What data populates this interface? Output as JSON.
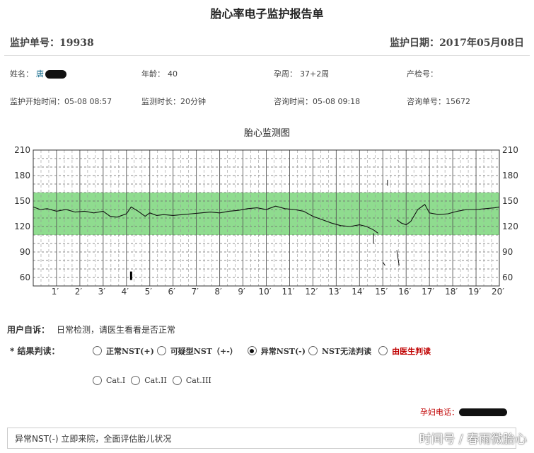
{
  "title": "胎心率电子监护报告单",
  "header": {
    "monitor_no_label": "监护单号：",
    "monitor_no": "19938",
    "monitor_date_label": "监护日期：",
    "monitor_date": "2017年05月08日"
  },
  "patient": {
    "name_label": "姓名：",
    "name": "唐",
    "age_label": "年龄：",
    "age": "40",
    "gestation_label": "孕周：",
    "gestation": "37+2周",
    "prenatal_no_label": "产检号：",
    "prenatal_no": "",
    "start_time_label": "监护开始时间：",
    "start_time": "05-08 08:57",
    "duration_label": "监测时长：",
    "duration": "20分钟",
    "consult_time_label": "咨询时间：",
    "consult_time": "05-08 09:18",
    "consult_no_label": "咨询单号：",
    "consult_no": "15672"
  },
  "chart_title": "胎心监测图",
  "chart_data": {
    "type": "line",
    "title": "胎心监测图",
    "xlabel": "",
    "ylabel": "",
    "ylim": [
      50,
      210
    ],
    "xlim": [
      0,
      20
    ],
    "yticks": [
      "210",
      "180",
      "150",
      "120",
      "90",
      "60"
    ],
    "xticks": [
      "1′",
      "2′",
      "3′",
      "4′",
      "5′",
      "6′",
      "7′",
      "8′",
      "9′",
      "10′",
      "11′",
      "12′",
      "13′",
      "14′",
      "15′",
      "16′",
      "17′",
      "18′",
      "19′",
      "20′"
    ],
    "normal_band": [
      110,
      160
    ],
    "band_color": "#8fdc8f",
    "series": [
      {
        "x": [
          0,
          0.3,
          0.6,
          1.0,
          1.4,
          1.8,
          2.2,
          2.6,
          3.0,
          3.3,
          3.6,
          4.0,
          4.2,
          4.5,
          4.8,
          5.0,
          5.3,
          5.6,
          6.0,
          6.4,
          6.8,
          7.2,
          7.6,
          8.0,
          8.4,
          8.8,
          9.2,
          9.6,
          10.0,
          10.4,
          10.8,
          11.2,
          11.6,
          12.0,
          12.4,
          12.8,
          13.2,
          13.6,
          14.0,
          14.3,
          14.6,
          14.8
        ],
        "y": [
          143,
          140,
          141,
          138,
          140,
          137,
          138,
          136,
          138,
          132,
          131,
          135,
          143,
          138,
          132,
          136,
          133,
          134,
          133,
          134,
          135,
          136,
          137,
          136,
          138,
          139,
          141,
          142,
          140,
          144,
          141,
          140,
          138,
          132,
          128,
          124,
          121,
          120,
          122,
          120,
          116,
          112
        ]
      },
      {
        "x": [
          15.6,
          15.8,
          16.0,
          16.2,
          16.5,
          16.8,
          17.0,
          17.4,
          17.8,
          18.2,
          18.6,
          19.0,
          19.4,
          19.8,
          20.0
        ],
        "y": [
          128,
          124,
          122,
          126,
          140,
          146,
          136,
          134,
          135,
          138,
          140,
          140,
          141,
          142,
          143
        ]
      }
    ]
  },
  "user_desc": {
    "label": "用户自诉：",
    "text": "日常检测，请医生看看是否正常"
  },
  "result": {
    "label": "* 结果判读：",
    "options": [
      "正常NST(+)",
      "可疑型NST（+-）",
      "异常NST(-)",
      "NST无法判读",
      "由医生判读"
    ],
    "selected": "异常NST(-)",
    "cat_options": [
      "Cat.I",
      "Cat.II",
      "Cat.III"
    ]
  },
  "phone_label": "孕妇电话：",
  "advice": "异常NST(-) 立即来院，全面评估胎儿状况",
  "watermark": "时间号 / 春雨微胎心"
}
